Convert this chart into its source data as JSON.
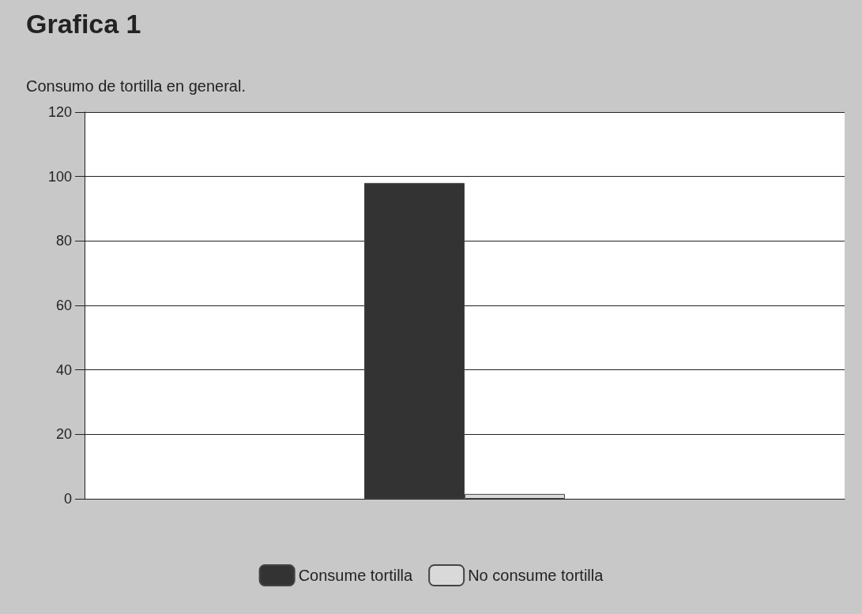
{
  "chart_data": {
    "type": "bar",
    "title": "Grafica 1",
    "subtitle": "Consumo de tortilla en general.",
    "categories": [
      null
    ],
    "series": [
      {
        "name": "Consume tortilla",
        "color": "#333333",
        "values": [
          98
        ]
      },
      {
        "name": "No consume tortilla",
        "color": "#d9d9d9",
        "values": [
          1.5
        ]
      }
    ],
    "ylim": [
      0,
      120
    ],
    "yticks": [
      0,
      20,
      40,
      60,
      80,
      100,
      120
    ],
    "grid": "y",
    "legend": "bottom"
  }
}
